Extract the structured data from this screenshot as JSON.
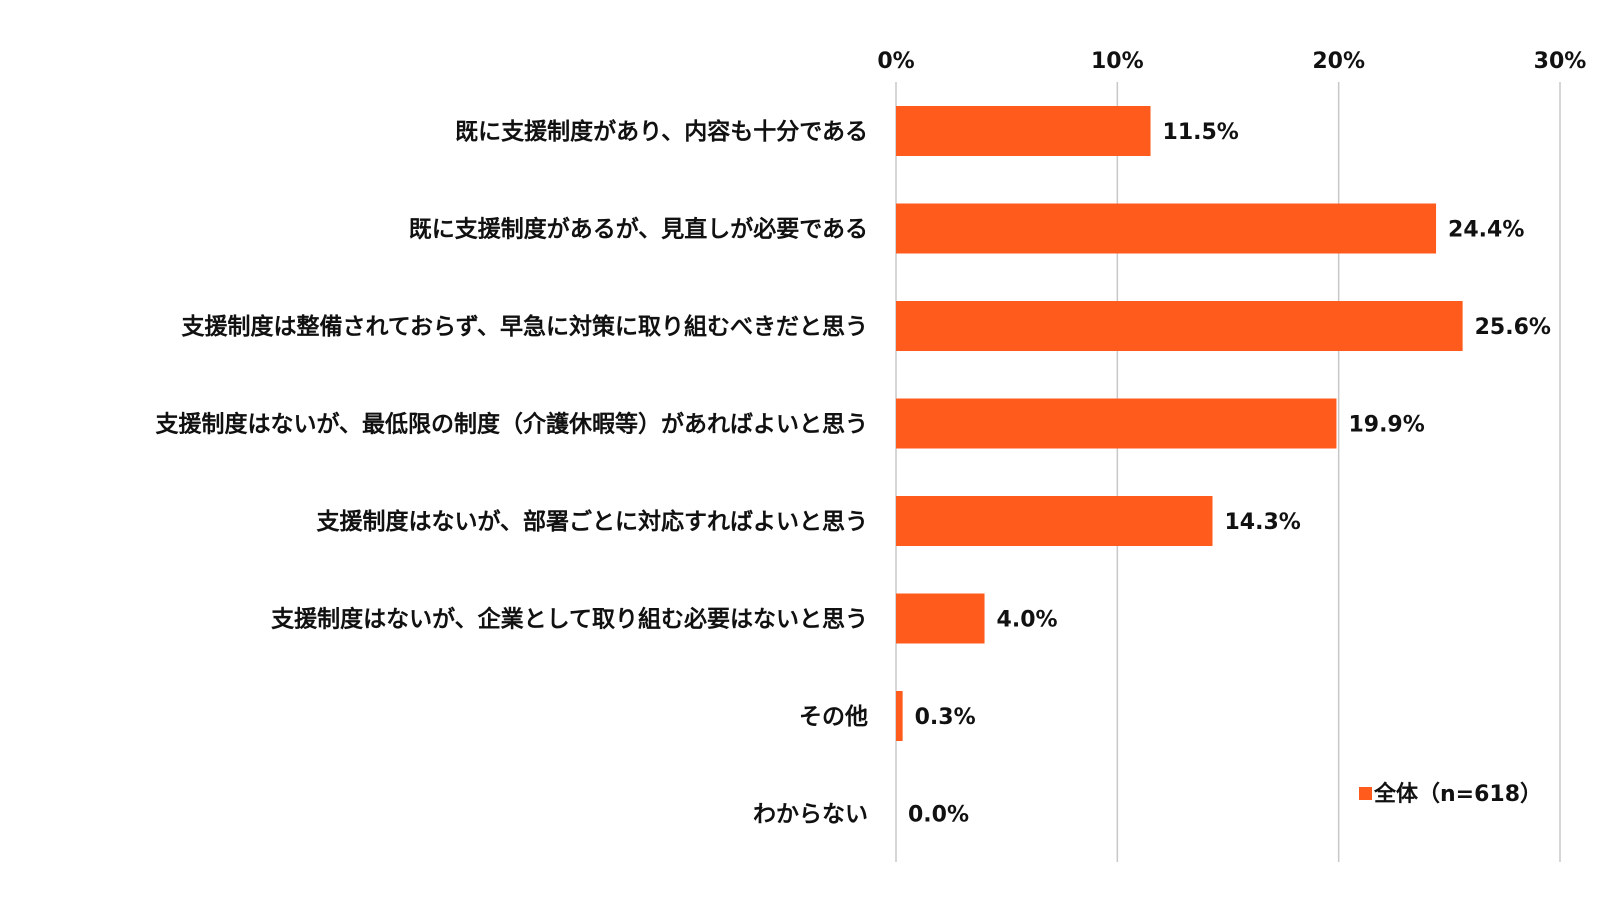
{
  "chart_data": {
    "type": "bar",
    "orientation": "horizontal",
    "categories": [
      "既に支援制度があり、内容も十分である",
      "既に支援制度があるが、見直しが必要である",
      "支援制度は整備されておらず、早急に対策に取り組むべきだと思う",
      "支援制度はないが、最低限の制度（介護休暇等）があればよいと思う",
      "支援制度はないが、部署ごとに対応すればよいと思う",
      "支援制度はないが、企業として取り組む必要はないと思う",
      "その他",
      "わからない"
    ],
    "series": [
      {
        "name": "全体（n=618）",
        "values": [
          11.5,
          24.4,
          25.6,
          19.9,
          14.3,
          4.0,
          0.3,
          0.0
        ],
        "labels": [
          "11.5%",
          "24.4%",
          "25.6%",
          "19.9%",
          "14.3%",
          "4.0%",
          "0.3%",
          "0.0%"
        ],
        "color": "#FF5B1C"
      }
    ],
    "xlim": [
      0,
      30
    ],
    "xticks": [
      0,
      10,
      20,
      30
    ],
    "xtick_labels": [
      "0%",
      "10%",
      "20%",
      "30%"
    ],
    "axis_position": "top",
    "grid": true,
    "gridline_color": "#C8C8C8",
    "legend_position": "bottom-right",
    "title": "",
    "xlabel": "",
    "ylabel": ""
  }
}
